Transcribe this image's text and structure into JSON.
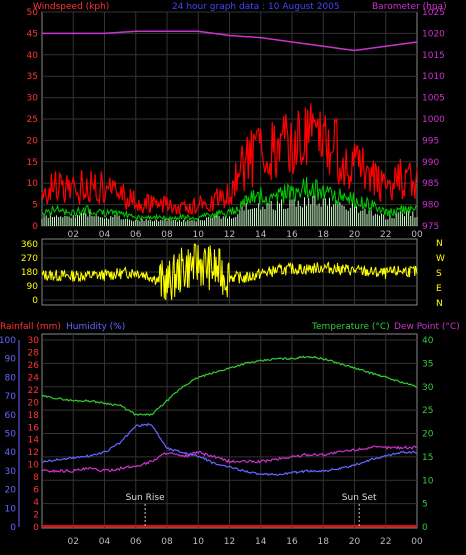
{
  "header": {
    "left": "Windspeed (kph)",
    "center": "24 hour graph data : 10 August 2005",
    "right": "Barometer (hpa)"
  },
  "panel3_header": {
    "rain": "Rainfall (mm)",
    "humidity": "Humidity (%)",
    "temp": "Temperature (°C)",
    "dew": "Dew Point (°C)"
  },
  "annotations": {
    "sunrise": "Sun Rise",
    "sunset": "Sun Set"
  },
  "colors": {
    "wind_gust": "#ff0000",
    "wind_avg": "#00cc00",
    "wind_dir_hist": "#ccffcc",
    "barometer": "#cc33cc",
    "direction": "#ffff00",
    "rain": "#ff0000",
    "humidity": "#6666ff",
    "temperature": "#33cc33",
    "dewpoint": "#cc33cc",
    "axis_left": "#ff3333",
    "axis_right_p1": "#cc33cc",
    "axis_dir": "#ffff00",
    "axis_hum": "#6666ff",
    "axis_temp": "#33cc33"
  },
  "chart_data": [
    {
      "type": "line",
      "name": "wind-barometer",
      "x_ticks": [
        "02",
        "04",
        "06",
        "08",
        "10",
        "12",
        "14",
        "16",
        "18",
        "20",
        "22",
        "00"
      ],
      "y_left": {
        "label": "Windspeed (kph)",
        "ticks": [
          0,
          5,
          10,
          15,
          20,
          25,
          30,
          35,
          40,
          45,
          50
        ],
        "lim": [
          0,
          50
        ]
      },
      "y_right": {
        "label": "Barometer (hpa)",
        "ticks": [
          975,
          980,
          985,
          990,
          995,
          1000,
          1005,
          1010,
          1015,
          1020,
          1025
        ],
        "lim": [
          975,
          1025
        ]
      },
      "series": [
        {
          "name": "Barometer (hpa)",
          "axis": "right",
          "x": [
            0,
            2,
            4,
            6,
            8,
            10,
            12,
            14,
            16,
            18,
            20,
            22,
            24
          ],
          "values": [
            1020,
            1020,
            1020,
            1020.5,
            1020.5,
            1020.5,
            1019.5,
            1019,
            1018,
            1017,
            1016,
            1017,
            1018
          ]
        },
        {
          "name": "gust",
          "axis": "left",
          "x": [
            0,
            1,
            2,
            3,
            4,
            5,
            6,
            7,
            8,
            9,
            10,
            11,
            12,
            13,
            14,
            15,
            16,
            17,
            18,
            19,
            20,
            21,
            22,
            23,
            24
          ],
          "values": [
            8,
            9,
            8,
            10,
            9,
            7,
            6,
            5,
            5,
            4,
            5,
            6,
            7,
            15,
            18,
            17,
            19,
            21,
            20,
            17,
            14,
            12,
            9,
            11,
            10
          ]
        },
        {
          "name": "avg",
          "axis": "left",
          "x": [
            0,
            1,
            2,
            3,
            4,
            5,
            6,
            7,
            8,
            9,
            10,
            11,
            12,
            13,
            14,
            15,
            16,
            17,
            18,
            19,
            20,
            21,
            22,
            23,
            24
          ],
          "values": [
            3,
            4,
            3,
            4,
            3,
            3,
            2,
            2,
            2,
            2,
            2,
            3,
            3,
            6,
            7,
            7,
            8,
            9,
            8,
            7,
            6,
            5,
            3,
            4,
            4
          ]
        }
      ]
    },
    {
      "type": "line",
      "name": "wind-direction",
      "y_left": {
        "ticks": [
          0,
          90,
          180,
          270,
          360
        ],
        "lim": [
          0,
          360
        ]
      },
      "y_right": {
        "ticks": [
          "N",
          "W",
          "S",
          "E",
          "N"
        ]
      },
      "series": [
        {
          "name": "direction",
          "x": [
            0,
            2,
            4,
            5,
            6,
            7,
            8,
            9,
            10,
            11,
            12,
            13,
            14,
            15,
            16,
            17,
            18,
            19,
            20,
            21,
            22,
            23,
            24
          ],
          "values": [
            160,
            155,
            160,
            170,
            180,
            150,
            100,
            200,
            240,
            200,
            150,
            140,
            170,
            190,
            200,
            200,
            210,
            200,
            190,
            180,
            170,
            190,
            180
          ]
        }
      ]
    },
    {
      "type": "line",
      "name": "temperature-humidity",
      "x_ticks": [
        "02",
        "04",
        "06",
        "08",
        "10",
        "12",
        "14",
        "16",
        "18",
        "20",
        "22",
        "00"
      ],
      "y_rain": {
        "label": "Rainfall (mm)",
        "ticks": [
          0,
          2,
          4,
          6,
          8,
          10,
          12,
          14,
          16,
          18,
          20,
          22,
          24,
          26,
          28,
          30
        ],
        "lim": [
          0,
          30
        ]
      },
      "y_hum": {
        "label": "Humidity (%)",
        "ticks": [
          0,
          10,
          20,
          30,
          40,
          50,
          60,
          70,
          80,
          90,
          100
        ],
        "lim": [
          0,
          100
        ]
      },
      "y_temp": {
        "label": "Temperature (°C)",
        "ticks": [
          0,
          5,
          10,
          15,
          20,
          25,
          30,
          35,
          40
        ],
        "lim": [
          0,
          40
        ]
      },
      "series": [
        {
          "name": "Temperature (°C)",
          "axis": "temp",
          "x": [
            0,
            1,
            2,
            3,
            4,
            5,
            6,
            7,
            8,
            9,
            10,
            11,
            12,
            13,
            14,
            15,
            16,
            17,
            18,
            19,
            20,
            21,
            22,
            23,
            24
          ],
          "values": [
            28,
            27.5,
            27,
            27,
            26.5,
            26,
            24,
            24,
            27,
            30,
            32,
            33,
            34,
            35,
            35.5,
            36,
            36,
            36.5,
            36,
            35,
            34,
            33,
            32,
            31,
            30
          ]
        },
        {
          "name": "Dew Point (°C)",
          "axis": "temp",
          "x": [
            0,
            1,
            2,
            3,
            4,
            5,
            6,
            7,
            8,
            9,
            10,
            11,
            12,
            13,
            14,
            15,
            16,
            17,
            18,
            19,
            20,
            21,
            22,
            23,
            24
          ],
          "values": [
            12,
            12,
            12,
            12.5,
            12,
            12.5,
            13,
            14,
            16,
            15,
            16,
            15,
            14,
            14,
            14,
            14.5,
            15,
            15.5,
            15.5,
            16,
            16.5,
            17,
            17,
            17,
            17
          ]
        },
        {
          "name": "Humidity (%)",
          "axis": "hum",
          "x": [
            0,
            1,
            2,
            3,
            4,
            5,
            6,
            7,
            8,
            9,
            10,
            11,
            12,
            13,
            14,
            15,
            16,
            17,
            18,
            19,
            20,
            21,
            22,
            23,
            24
          ],
          "values": [
            35,
            36,
            37,
            38,
            40,
            45,
            54,
            55,
            42,
            40,
            38,
            34,
            32,
            30,
            28,
            28,
            29,
            30,
            30,
            31,
            33,
            36,
            38,
            40,
            40
          ]
        },
        {
          "name": "Rainfall (mm)",
          "axis": "rain",
          "x": [
            0,
            24
          ],
          "values": [
            0,
            0
          ]
        }
      ],
      "annotations": [
        {
          "label": "Sun Rise",
          "x": 6.6
        },
        {
          "label": "Sun Set",
          "x": 20.3
        }
      ]
    }
  ]
}
